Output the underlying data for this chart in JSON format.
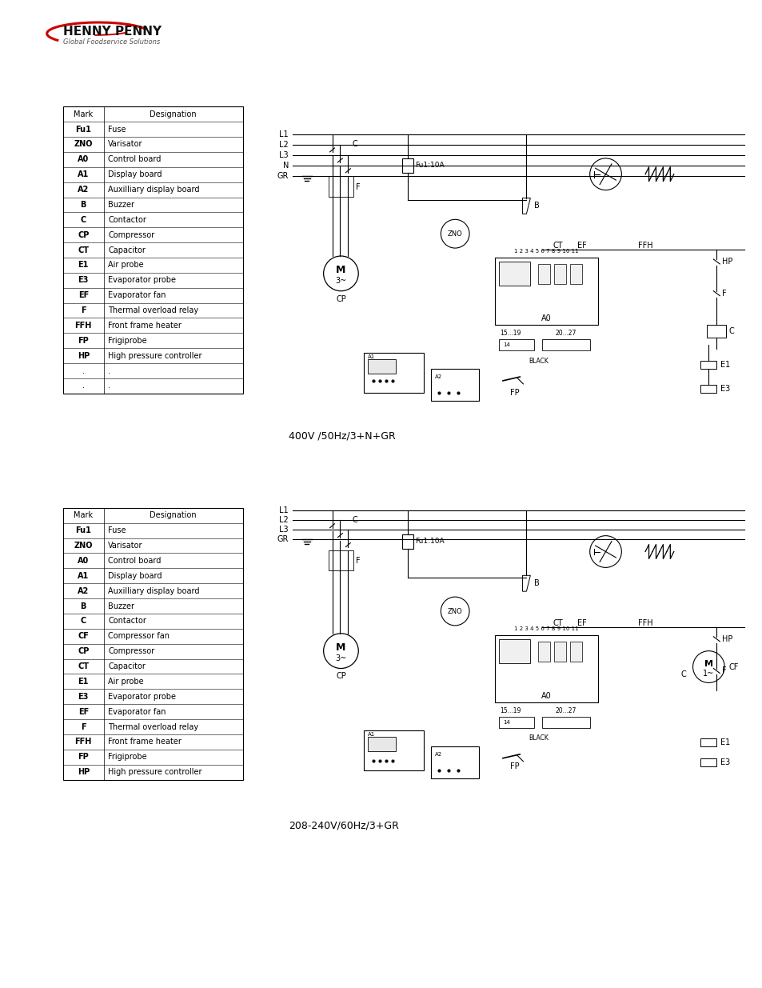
{
  "bg_color": "#ffffff",
  "diagram1_caption": "400V /50Hz/3+N+GR",
  "diagram2_caption": "208-240V/60Hz/3+GR",
  "table1_marks": [
    "Mark",
    "Fu1",
    "ZNO",
    "A0",
    "A1",
    "A2",
    "B",
    "C",
    "CP",
    "CT",
    "E1",
    "E3",
    "EF",
    "F",
    "FFH",
    "FP",
    "HP",
    ".",
    "."
  ],
  "table1_desigs": [
    "Designation",
    "Fuse",
    "Varisator",
    "Control board",
    "Display board",
    "Auxilliary display board",
    "Buzzer",
    "Contactor",
    "Compressor",
    "Capacitor",
    "Air probe",
    "Evaporator probe",
    "Evaporator fan",
    "Thermal overload relay",
    "Front frame heater",
    "Frigiprobe",
    "High pressure controller",
    ".",
    "."
  ],
  "table2_marks": [
    "Mark",
    "Fu1",
    "ZNO",
    "A0",
    "A1",
    "A2",
    "B",
    "C",
    "CF",
    "CP",
    "CT",
    "E1",
    "E3",
    "EF",
    "F",
    "FFH",
    "FP",
    "HP"
  ],
  "table2_desigs": [
    "Designation",
    "Fuse",
    "Varisator",
    "Control board",
    "Display board",
    "Auxilliary display board",
    "Buzzer",
    "Contactor",
    "Compressor fan",
    "Compressor",
    "Capacitor",
    "Air probe",
    "Evaporator probe",
    "Evaporator fan",
    "Thermal overload relay",
    "Front frame heater",
    "Frigiprobe",
    "High pressure controller"
  ],
  "logo_text": "HENNY PENNY",
  "logo_sub": "Global Foodservice Solutions",
  "line_color": "#000000",
  "lw": 0.8
}
